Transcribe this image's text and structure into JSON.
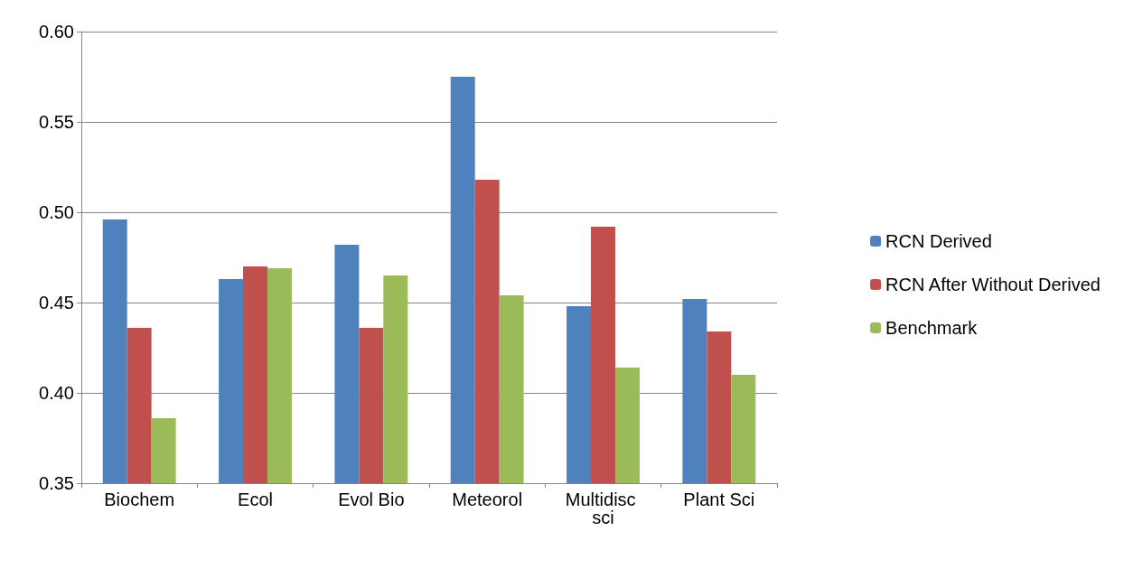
{
  "chart_data": {
    "type": "bar",
    "categories": [
      "Biochem",
      "Ecol",
      "Evol Bio",
      "Meteorol",
      "Multidisc sci",
      "Plant Sci"
    ],
    "series": [
      {
        "name": "RCN Derived",
        "color": "#4f81bd",
        "values": [
          0.496,
          0.463,
          0.482,
          0.575,
          0.448,
          0.452
        ]
      },
      {
        "name": "RCN After Without Derived",
        "color": "#c0504d",
        "values": [
          0.436,
          0.47,
          0.436,
          0.518,
          0.492,
          0.434
        ]
      },
      {
        "name": "Benchmark",
        "color": "#9bbb59",
        "values": [
          0.386,
          0.469,
          0.465,
          0.454,
          0.414,
          0.41
        ]
      }
    ],
    "ylim": [
      0.35,
      0.6
    ],
    "yticks": [
      {
        "value": 0.35,
        "label": "0.35"
      },
      {
        "value": 0.4,
        "label": "0.40"
      },
      {
        "value": 0.45,
        "label": "0.45"
      },
      {
        "value": 0.5,
        "label": "0.50"
      },
      {
        "value": 0.55,
        "label": "0.55"
      },
      {
        "value": 0.6,
        "label": "0.60"
      }
    ],
    "grid": "y",
    "legend": "right"
  }
}
